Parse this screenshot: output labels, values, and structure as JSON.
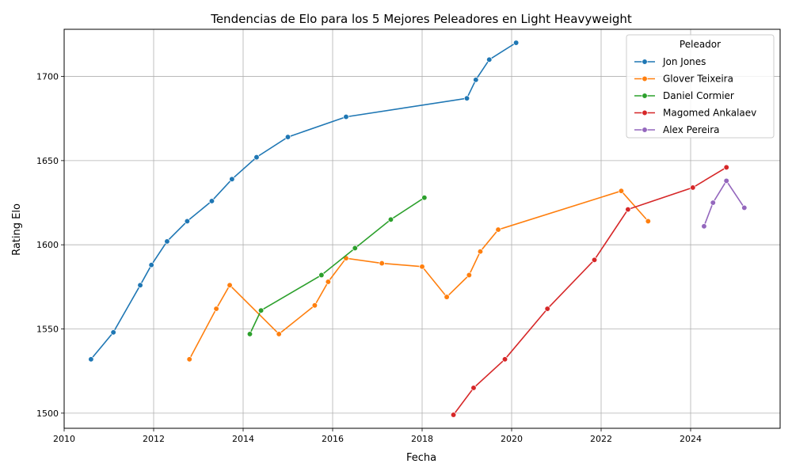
{
  "chart_data": {
    "type": "line",
    "title": "Tendencias de Elo para los 5 Mejores Peleadores en Light Heavyweight",
    "xlabel": "Fecha",
    "ylabel": "Rating Elo",
    "xlim": [
      2010.0,
      2026.0
    ],
    "ylim": [
      1491,
      1728
    ],
    "x_ticks": [
      2010,
      2012,
      2014,
      2016,
      2018,
      2020,
      2022,
      2024
    ],
    "y_ticks": [
      1500,
      1550,
      1600,
      1650,
      1700
    ],
    "grid": true,
    "legend": {
      "title": "Peleador",
      "placement": "top-right"
    },
    "series": [
      {
        "name": "Jon Jones",
        "color": "#1f77b4",
        "points": [
          [
            2010.6,
            1532
          ],
          [
            2011.1,
            1548
          ],
          [
            2011.7,
            1576
          ],
          [
            2011.95,
            1588
          ],
          [
            2012.3,
            1602
          ],
          [
            2012.75,
            1614
          ],
          [
            2013.3,
            1626
          ],
          [
            2013.75,
            1639
          ],
          [
            2014.3,
            1652
          ],
          [
            2015.0,
            1664
          ],
          [
            2016.3,
            1676
          ],
          [
            2019.0,
            1687
          ],
          [
            2019.2,
            1698
          ],
          [
            2019.5,
            1710
          ],
          [
            2020.1,
            1720
          ]
        ]
      },
      {
        "name": "Glover Teixeira",
        "color": "#ff7f0e",
        "points": [
          [
            2012.8,
            1532
          ],
          [
            2013.4,
            1562
          ],
          [
            2013.7,
            1576
          ],
          [
            2014.8,
            1547
          ],
          [
            2015.6,
            1564
          ],
          [
            2015.9,
            1578
          ],
          [
            2016.3,
            1592
          ],
          [
            2017.1,
            1589
          ],
          [
            2018.0,
            1587
          ],
          [
            2018.55,
            1569
          ],
          [
            2019.05,
            1582
          ],
          [
            2019.3,
            1596
          ],
          [
            2019.7,
            1609
          ],
          [
            2022.45,
            1632
          ],
          [
            2023.05,
            1614
          ]
        ]
      },
      {
        "name": "Daniel Cormier",
        "color": "#2ca02c",
        "points": [
          [
            2014.15,
            1547
          ],
          [
            2014.4,
            1561
          ],
          [
            2015.75,
            1582
          ],
          [
            2016.5,
            1598
          ],
          [
            2017.3,
            1615
          ],
          [
            2018.05,
            1628
          ]
        ]
      },
      {
        "name": "Magomed Ankalaev",
        "color": "#d62728",
        "points": [
          [
            2018.7,
            1499
          ],
          [
            2019.15,
            1515
          ],
          [
            2019.85,
            1532
          ],
          [
            2020.8,
            1562
          ],
          [
            2021.85,
            1591
          ],
          [
            2022.6,
            1621
          ],
          [
            2024.05,
            1634
          ],
          [
            2024.8,
            1646
          ]
        ]
      },
      {
        "name": "Alex Pereira",
        "color": "#9467bd",
        "points": [
          [
            2024.3,
            1611
          ],
          [
            2024.5,
            1625
          ],
          [
            2024.8,
            1638
          ],
          [
            2025.2,
            1622
          ]
        ]
      }
    ]
  }
}
